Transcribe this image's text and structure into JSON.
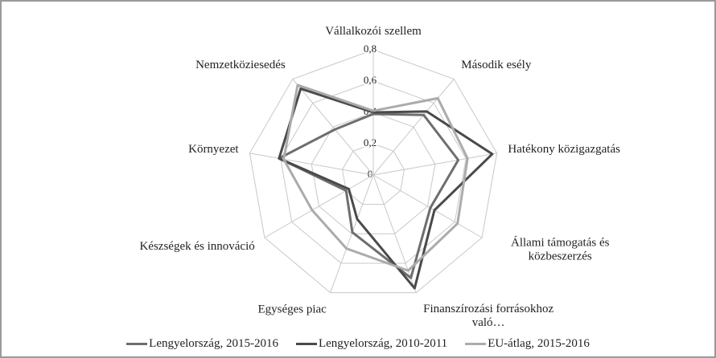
{
  "chart_data": {
    "type": "radar",
    "categories": [
      "Vállalkozói szellem",
      "Második esély",
      "Hatékony közigazgatás",
      "Állami támogatás és közbeszerzés",
      "Finanszírozási forrásokhoz való…",
      "Egységes piac",
      "Készségek és innováció",
      "Környezet",
      "Nemzetköziesedés"
    ],
    "ylim": [
      0,
      0.8
    ],
    "yticks": [
      0,
      {
        "value": 0.2,
        "label": "0,2"
      },
      {
        "value": 0.4,
        "label": "0,4"
      },
      {
        "value": 0.6,
        "label": "0,6"
      },
      {
        "value": 0.8,
        "label": "0,8"
      }
    ],
    "grid": true,
    "legend": "bottom",
    "series": [
      {
        "name": "Lengyelország, 2015-2016",
        "color": "#6e6e6e",
        "values": [
          0.39,
          0.5,
          0.55,
          0.42,
          0.7,
          0.39,
          0.2,
          0.61,
          0.38
        ]
      },
      {
        "name": "Lengyelország, 2010-2011",
        "color": "#4a4a4a",
        "values": [
          0.4,
          0.53,
          0.77,
          0.45,
          0.77,
          0.3,
          0.18,
          0.61,
          0.72
        ]
      },
      {
        "name": "EU-átlag, 2015-2016",
        "color": "#ababab",
        "values": [
          0.41,
          0.64,
          0.61,
          0.62,
          0.65,
          0.5,
          0.45,
          0.58,
          0.75
        ]
      }
    ]
  }
}
